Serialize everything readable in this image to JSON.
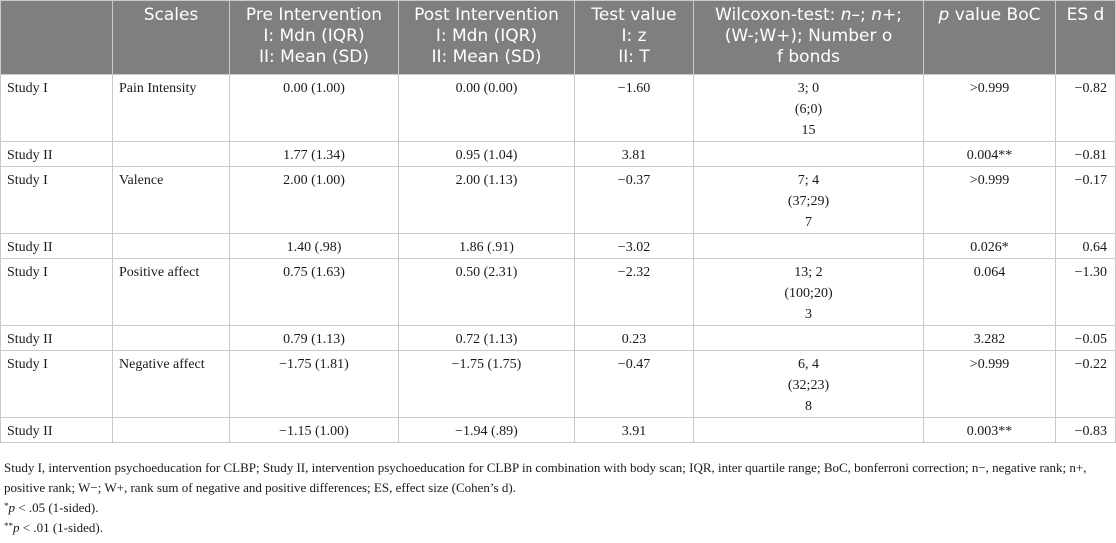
{
  "table": {
    "headers": {
      "col1": "",
      "col2": "Scales",
      "col3": [
        "Pre Intervention",
        "I: Mdn (IQR)",
        "II: Mean (SD)"
      ],
      "col4": [
        "Post Intervention",
        "I: Mdn (IQR)",
        "II: Mean (SD)"
      ],
      "col5": [
        "Test value",
        "I: z",
        "II: T"
      ],
      "col6": {
        "line1_pre": "Wilcoxon-test: ",
        "n_minus": "n–",
        "sep1": "; ",
        "n_plus": "n+",
        "sep2": ";",
        "line2": "(W-;W+); Number o",
        "line3": "f bonds"
      },
      "col7": {
        "p": "p",
        "rest": " value BoC"
      },
      "col8": "ES d"
    },
    "rows": [
      {
        "study": "Study I",
        "scale": "Pain Intensity",
        "pre": "0.00 (1.00)",
        "post": "0.00 (0.00)",
        "test": "−1.60",
        "wilcoxon": [
          "3; 0",
          "(6;0)",
          "15"
        ],
        "p": ">0.999",
        "es": "−0.82"
      },
      {
        "study": "Study II",
        "scale": "",
        "pre": "1.77 (1.34)",
        "post": "0.95 (1.04)",
        "test": "3.81",
        "wilcoxon": [
          "",
          "",
          ""
        ],
        "p": "0.004**",
        "es": "−0.81"
      },
      {
        "study": "Study I",
        "scale": "Valence",
        "pre": "2.00 (1.00)",
        "post": "2.00 (1.13)",
        "test": "−0.37",
        "wilcoxon": [
          "7; 4",
          "(37;29)",
          "7"
        ],
        "p": ">0.999",
        "es": "−0.17"
      },
      {
        "study": "Study II",
        "scale": "",
        "pre": "1.40 (.98)",
        "post": "1.86 (.91)",
        "test": "−3.02",
        "wilcoxon": [
          "",
          "",
          ""
        ],
        "p": "0.026*",
        "es": "0.64"
      },
      {
        "study": "Study I",
        "scale": "Positive affect",
        "pre": "0.75 (1.63)",
        "post": "0.50 (2.31)",
        "test": "−2.32",
        "wilcoxon": [
          "13; 2",
          "(100;20)",
          "3"
        ],
        "p": "0.064",
        "es": "−1.30"
      },
      {
        "study": "Study II",
        "scale": "",
        "pre": "0.79 (1.13)",
        "post": "0.72 (1.13)",
        "test": "0.23",
        "wilcoxon": [
          "",
          "",
          ""
        ],
        "p": "3.282",
        "es": "−0.05"
      },
      {
        "study": "Study I",
        "scale": "Negative affect",
        "pre": "−1.75 (1.81)",
        "post": "−1.75 (1.75)",
        "test": "−0.47",
        "wilcoxon": [
          "6, 4",
          "(32;23)",
          "8"
        ],
        "p": ">0.999",
        "es": "−0.22"
      },
      {
        "study": "Study II",
        "scale": "",
        "pre": "−1.15 (1.00)",
        "post": "−1.94 (.89)",
        "test": "3.91",
        "wilcoxon": [
          "",
          "",
          ""
        ],
        "p": "0.003**",
        "es": "−0.83"
      }
    ]
  },
  "notes": {
    "abbrev": "Study I, intervention psychoeducation for CLBP; Study II, intervention psychoeducation for CLBP in combination with body scan; IQR, inter quartile range; BoC, bonferroni correction; n−, negative rank; n+, positive rank; W−; W+, rank sum of negative and positive differences; ES, effect size (Cohen’s d).",
    "sig1_mark": "*",
    "sig1_p": "p",
    "sig1_text": " < .05 (1-sided).",
    "sig2_mark": "**",
    "sig2_p": "p",
    "sig2_text": " < .01 (1-sided)."
  }
}
